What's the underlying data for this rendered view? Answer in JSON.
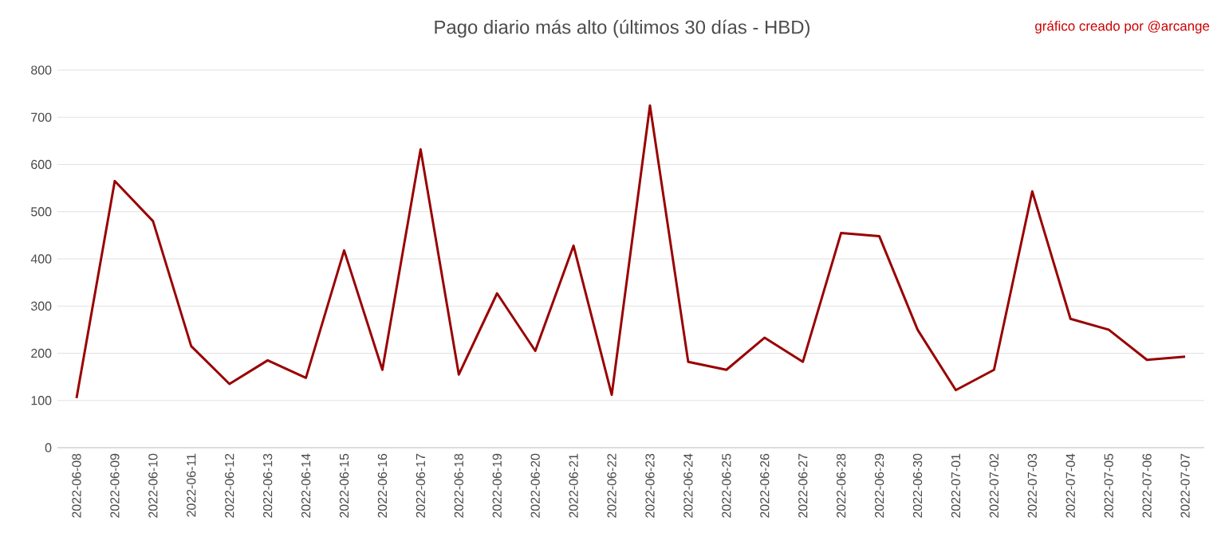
{
  "chart_data": {
    "type": "line",
    "title": "Pago diario más alto (últimos 30 días - HBD)",
    "annotations": [
      "gráfico creado por @arcange"
    ],
    "categories": [
      "2022-06-08",
      "2022-06-09",
      "2022-06-10",
      "2022-06-11",
      "2022-06-12",
      "2022-06-13",
      "2022-06-14",
      "2022-06-15",
      "2022-06-16",
      "2022-06-17",
      "2022-06-18",
      "2022-06-19",
      "2022-06-20",
      "2022-06-21",
      "2022-06-22",
      "2022-06-23",
      "2022-06-24",
      "2022-06-25",
      "2022-06-26",
      "2022-06-27",
      "2022-06-28",
      "2022-06-29",
      "2022-06-30",
      "2022-07-01",
      "2022-07-02",
      "2022-07-03",
      "2022-07-04",
      "2022-07-05",
      "2022-07-06",
      "2022-07-07"
    ],
    "series": [
      {
        "color": "#990000",
        "values": [
          105,
          565,
          480,
          215,
          135,
          185,
          148,
          418,
          165,
          632,
          155,
          327,
          205,
          428,
          112,
          725,
          182,
          165,
          233,
          182,
          455,
          448,
          250,
          122,
          165,
          543,
          273,
          250,
          186,
          193
        ]
      }
    ],
    "ylim": [
      0,
      800
    ],
    "yticks": [
      0,
      100,
      200,
      300,
      400,
      500,
      600,
      700,
      800
    ],
    "grid": "y"
  }
}
